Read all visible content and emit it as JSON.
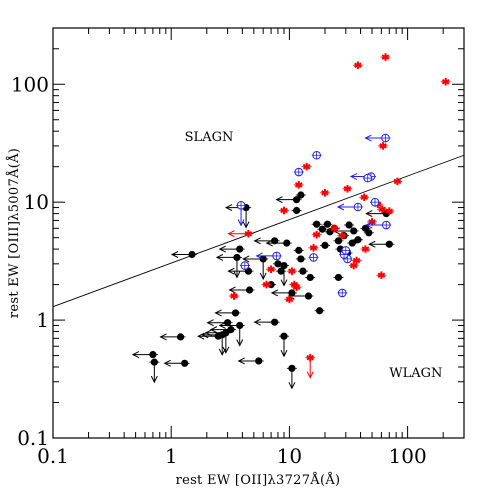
{
  "chart_data": {
    "type": "scatter",
    "title": "",
    "xlabel": "rest EW [OII]λ3727Å(Å)",
    "ylabel": "rest EW [OIII]λ5007Å(Å)",
    "xscale": "log",
    "yscale": "log",
    "xlim": [
      0.1,
      300
    ],
    "ylim": [
      0.1,
      300
    ],
    "x_ticks": [
      {
        "v": 0.1,
        "label": "0.1"
      },
      {
        "v": 1,
        "label": "1"
      },
      {
        "v": 10,
        "label": "10"
      },
      {
        "v": 100,
        "label": "100"
      }
    ],
    "y_ticks": [
      {
        "v": 0.1,
        "label": "0.1"
      },
      {
        "v": 1,
        "label": "1"
      },
      {
        "v": 10,
        "label": "10"
      },
      {
        "v": 100,
        "label": "100"
      }
    ],
    "annotations": [
      {
        "text": "SLAGN",
        "x": 1.3,
        "y": 33
      },
      {
        "text": "WLAGN",
        "x": 70,
        "y": 0.33
      }
    ],
    "divider_line": {
      "x": [
        0.1,
        300
      ],
      "y": [
        1.3,
        25
      ]
    },
    "colors": {
      "black": "#000000",
      "red": "#ff0000",
      "blue": "#2222dd"
    },
    "series": [
      {
        "marker": "filled-circle",
        "color": "#000000",
        "points": [
          {
            "x": 1.5,
            "y": 3.6,
            "left": true
          },
          {
            "x": 4.3,
            "y": 9.0,
            "left": true,
            "down": true
          },
          {
            "x": 3.6,
            "y": 3.4,
            "left": true,
            "down": true
          },
          {
            "x": 3.8,
            "y": 4.0,
            "left": true
          },
          {
            "x": 4.5,
            "y": 2.6,
            "left": true
          },
          {
            "x": 4.6,
            "y": 1.8,
            "left": true
          },
          {
            "x": 7.5,
            "y": 4.7,
            "left": true
          },
          {
            "x": 6.0,
            "y": 3.3,
            "left": true,
            "down": true
          },
          {
            "x": 9.5,
            "y": 4.5,
            "left": true
          },
          {
            "x": 8.0,
            "y": 3.0
          },
          {
            "x": 7.0,
            "y": 2.0
          },
          {
            "x": 9.0,
            "y": 2.9,
            "down": true
          },
          {
            "x": 8.5,
            "y": 2.6
          },
          {
            "x": 11.5,
            "y": 10.5,
            "left": true
          },
          {
            "x": 12.5,
            "y": 11.5
          },
          {
            "x": 11.5,
            "y": 8.5
          },
          {
            "x": 12.0,
            "y": 3.9
          },
          {
            "x": 12.5,
            "y": 3.3
          },
          {
            "x": 13.0,
            "y": 2.6
          },
          {
            "x": 15.0,
            "y": 2.3
          },
          {
            "x": 14.5,
            "y": 1.6,
            "left": true
          },
          {
            "x": 10.5,
            "y": 1.7,
            "left": true
          },
          {
            "x": 17.0,
            "y": 6.5
          },
          {
            "x": 19.0,
            "y": 5.9
          },
          {
            "x": 21.0,
            "y": 6.5
          },
          {
            "x": 22.0,
            "y": 5.6
          },
          {
            "x": 24.0,
            "y": 6.0
          },
          {
            "x": 26.0,
            "y": 4.7
          },
          {
            "x": 20.0,
            "y": 4.3
          },
          {
            "x": 27.0,
            "y": 4.0
          },
          {
            "x": 29.0,
            "y": 5.2
          },
          {
            "x": 32.0,
            "y": 6.4
          },
          {
            "x": 34.0,
            "y": 4.5
          },
          {
            "x": 31.0,
            "y": 3.7
          },
          {
            "x": 35.0,
            "y": 5.7,
            "left": true
          },
          {
            "x": 26.0,
            "y": 2.3
          },
          {
            "x": 18.0,
            "y": 1.2
          },
          {
            "x": 38.0,
            "y": 4.8
          },
          {
            "x": 44.0,
            "y": 6.0
          },
          {
            "x": 47.0,
            "y": 5.5
          },
          {
            "x": 66.0,
            "y": 8.0,
            "left": true
          },
          {
            "x": 70.0,
            "y": 4.4,
            "left": true
          },
          {
            "x": 3.5,
            "y": 1.15,
            "left": true
          },
          {
            "x": 3.0,
            "y": 0.95,
            "left": true
          },
          {
            "x": 3.8,
            "y": 0.9,
            "left": true,
            "down": true
          },
          {
            "x": 3.2,
            "y": 0.83,
            "left": true
          },
          {
            "x": 2.9,
            "y": 0.78,
            "left": true,
            "down": true
          },
          {
            "x": 2.7,
            "y": 0.75,
            "left": true,
            "down": true
          },
          {
            "x": 2.5,
            "y": 0.73,
            "left": true
          },
          {
            "x": 1.2,
            "y": 0.72,
            "left": true
          },
          {
            "x": 0.7,
            "y": 0.51,
            "left": true
          },
          {
            "x": 0.72,
            "y": 0.44,
            "down": true
          },
          {
            "x": 1.3,
            "y": 0.43,
            "left": true
          },
          {
            "x": 5.5,
            "y": 0.45,
            "left": true
          },
          {
            "x": 7.5,
            "y": 0.96,
            "left": true
          },
          {
            "x": 9.0,
            "y": 0.73,
            "down": true
          },
          {
            "x": 10.5,
            "y": 0.39,
            "down": true
          }
        ]
      },
      {
        "marker": "star",
        "color": "#ff0000",
        "points": [
          {
            "x": 38,
            "y": 145
          },
          {
            "x": 65,
            "y": 170
          },
          {
            "x": 210,
            "y": 105
          },
          {
            "x": 62,
            "y": 30
          },
          {
            "x": 14,
            "y": 20
          },
          {
            "x": 12,
            "y": 14
          },
          {
            "x": 31,
            "y": 13
          },
          {
            "x": 82,
            "y": 15
          },
          {
            "x": 43,
            "y": 11
          },
          {
            "x": 56,
            "y": 9.6
          },
          {
            "x": 61,
            "y": 8.7
          },
          {
            "x": 9.0,
            "y": 8.5
          },
          {
            "x": 20,
            "y": 12
          },
          {
            "x": 50,
            "y": 6.8
          },
          {
            "x": 70,
            "y": 8.4
          },
          {
            "x": 24,
            "y": 6.0
          },
          {
            "x": 28,
            "y": 5.2
          },
          {
            "x": 3.4,
            "y": 1.6
          },
          {
            "x": 6.4,
            "y": 2.0
          },
          {
            "x": 10.5,
            "y": 2.6
          },
          {
            "x": 11,
            "y": 2.0
          },
          {
            "x": 17,
            "y": 5.3
          },
          {
            "x": 4.5,
            "y": 5.4,
            "left": true
          },
          {
            "x": 37,
            "y": 3.2
          },
          {
            "x": 44,
            "y": 4.0
          },
          {
            "x": 60,
            "y": 2.4
          },
          {
            "x": 35,
            "y": 2.9
          },
          {
            "x": 10,
            "y": 1.5
          },
          {
            "x": 11.5,
            "y": 1.9
          },
          {
            "x": 15,
            "y": 0.48,
            "down": true
          },
          {
            "x": 16,
            "y": 4.1
          },
          {
            "x": 7.0,
            "y": 2.7
          }
        ]
      },
      {
        "marker": "open-circle-cross",
        "color": "#2222dd",
        "points": [
          {
            "x": 65,
            "y": 35,
            "left": true
          },
          {
            "x": 17,
            "y": 25
          },
          {
            "x": 12,
            "y": 18
          },
          {
            "x": 49,
            "y": 16.5,
            "left": true
          },
          {
            "x": 46,
            "y": 16
          },
          {
            "x": 53,
            "y": 10
          },
          {
            "x": 3.9,
            "y": 9.4,
            "down": true
          },
          {
            "x": 31,
            "y": 3.3
          },
          {
            "x": 38,
            "y": 9.1,
            "left": true
          },
          {
            "x": 4.2,
            "y": 2.9
          },
          {
            "x": 28,
            "y": 1.7
          },
          {
            "x": 29,
            "y": 3.6
          },
          {
            "x": 16,
            "y": 3.4
          },
          {
            "x": 66,
            "y": 6.4,
            "left": true
          },
          {
            "x": 7.8,
            "y": 3.5,
            "left": true
          },
          {
            "x": 30,
            "y": 3.9
          }
        ]
      }
    ]
  }
}
